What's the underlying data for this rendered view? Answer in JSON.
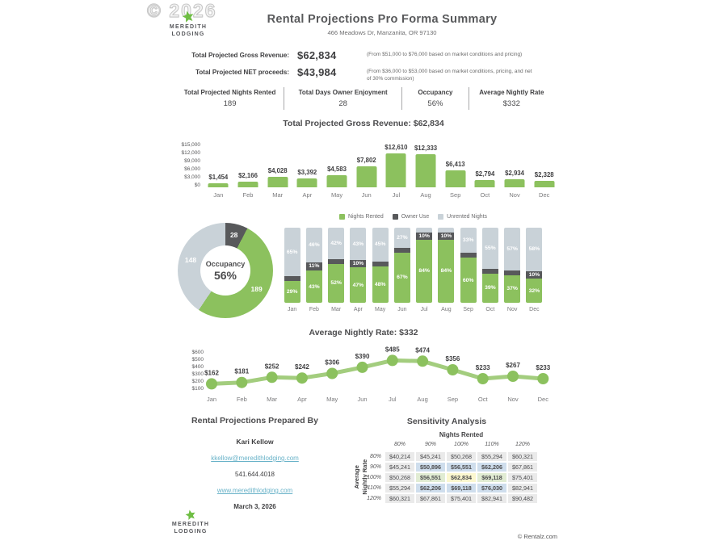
{
  "watermark": "© 2026",
  "brand": {
    "line1": "MEREDITH",
    "line2": "LODGING"
  },
  "header": {
    "title": "Rental Projections Pro Forma Summary",
    "subtitle": "466 Meadows Dr, Manzanita, OR 97130"
  },
  "summary": {
    "rows": [
      {
        "label": "Total Projected Gross Revenue:",
        "value": "$62,834",
        "note": "(From $51,000 to $76,000 based on market conditions and pricing)"
      },
      {
        "label": "Total Projected NET proceeds:",
        "value": "$43,984",
        "note": "(From $36,000 to $53,000 based on market conditions, pricing, and net of 30% commission)"
      }
    ]
  },
  "stats": [
    {
      "label": "Total Projected Nights Rented",
      "value": "189"
    },
    {
      "label": "Total Days Owner Enjoyment",
      "value": "28"
    },
    {
      "label": "Occupancy",
      "value": "56%"
    },
    {
      "label": "Average Nightly Rate",
      "value": "$332"
    }
  ],
  "chart_data": [
    {
      "type": "bar",
      "title": "Total Projected Gross Revenue: $62,834",
      "categories": [
        "Jan",
        "Feb",
        "Mar",
        "Apr",
        "May",
        "Jun",
        "Jul",
        "Aug",
        "Sep",
        "Oct",
        "Nov",
        "Dec"
      ],
      "values": [
        1454,
        2166,
        4028,
        3392,
        4583,
        7802,
        12610,
        12333,
        6413,
        2794,
        2934,
        2328
      ],
      "labels": [
        "$1,454",
        "$2,166",
        "$4,028",
        "$3,392",
        "$4,583",
        "$7,802",
        "$12,610",
        "$12,333",
        "$6,413",
        "$2,794",
        "$2,934",
        "$2,328"
      ],
      "yticks": [
        "$15,000",
        "$12,000",
        "$9,000",
        "$6,000",
        "$3,000",
        "$0"
      ],
      "ylim": [
        0,
        15000
      ]
    },
    {
      "type": "stacked-bar",
      "title": "",
      "categories": [
        "Jan",
        "Feb",
        "Mar",
        "Apr",
        "May",
        "Jun",
        "Jul",
        "Aug",
        "Sep",
        "Oct",
        "Nov",
        "Dec"
      ],
      "legend": [
        "Nights Rented",
        "Owner Use",
        "Unrented Nights"
      ],
      "series": [
        {
          "name": "Nights Rented",
          "values": [
            29,
            43,
            52,
            47,
            48,
            67,
            84,
            84,
            60,
            39,
            37,
            32
          ]
        },
        {
          "name": "Owner Use",
          "values": [
            6,
            11,
            6,
            10,
            7,
            6,
            10,
            10,
            7,
            6,
            6,
            10
          ]
        },
        {
          "name": "Unrented Nights",
          "values": [
            65,
            46,
            42,
            43,
            45,
            27,
            6,
            6,
            33,
            55,
            57,
            58
          ]
        }
      ],
      "unit": "%",
      "label_min_pct": 10
    },
    {
      "type": "donut",
      "center_label": "Occupancy",
      "center_value": "56%",
      "slices": [
        {
          "name": "Owner Use",
          "value": 28
        },
        {
          "name": "Nights Rented",
          "value": 189
        },
        {
          "name": "Unrented Nights",
          "value": 148
        }
      ]
    },
    {
      "type": "line",
      "title": "Average Nightly Rate: $332",
      "categories": [
        "Jan",
        "Feb",
        "Mar",
        "Apr",
        "May",
        "Jun",
        "Jul",
        "Aug",
        "Sep",
        "Oct",
        "Nov",
        "Dec"
      ],
      "values": [
        162,
        181,
        252,
        242,
        306,
        390,
        485,
        474,
        356,
        233,
        267,
        233
      ],
      "labels": [
        "$162",
        "$181",
        "$252",
        "$242",
        "$306",
        "$390",
        "$485",
        "$474",
        "$356",
        "$233",
        "$267",
        "$233"
      ],
      "yticks": [
        "$600",
        "$500",
        "$400",
        "$300",
        "$200",
        "$100"
      ],
      "ylim": [
        100,
        600
      ]
    }
  ],
  "prepared_by": {
    "heading": "Rental Projections Prepared By",
    "name": "Kari Kellow",
    "email": "kkellow@meredithlodging.com",
    "phone": "541.644.4018",
    "website": "www.meredithlodging.com",
    "date": "March 3, 2026"
  },
  "sensitivity": {
    "title": "Sensitivity Analysis",
    "col_group": "Nights Rented",
    "row_group_line1": "Average",
    "row_group_line2": "Nightly Rate",
    "col_headers": [
      "80%",
      "90%",
      "100%",
      "110%",
      "120%"
    ],
    "row_headers": [
      "80%",
      "90%",
      "100%",
      "110%",
      "120%"
    ],
    "rows": [
      [
        "$40,214",
        "$45,241",
        "$50,268",
        "$55,294",
        "$60,321"
      ],
      [
        "$45,241",
        "$50,896",
        "$56,551",
        "$62,206",
        "$67,861"
      ],
      [
        "$50,268",
        "$56,551",
        "$62,834",
        "$69,118",
        "$75,401"
      ],
      [
        "$55,294",
        "$62,206",
        "$69,118",
        "$76,030",
        "$82,941"
      ],
      [
        "$60,321",
        "$67,861",
        "$75,401",
        "$82,941",
        "$90,482"
      ]
    ],
    "highlights": {
      "1,1": "blue",
      "1,2": "blue",
      "1,3": "blue",
      "2,1": "green",
      "2,2": "yellow",
      "2,3": "green",
      "3,1": "blue",
      "3,2": "blue",
      "3,3": "blue"
    }
  },
  "footer": {
    "copyright": "© Rentalz.com"
  },
  "colors": {
    "green": "#8CC15E",
    "dark_gray": "#58595B",
    "light_gray": "#C9D2D8",
    "link": "#68B2C8",
    "highlight_yellow": "#FBF7CF",
    "highlight_green": "#E1ECD3",
    "highlight_blue": "#CFDEED"
  }
}
